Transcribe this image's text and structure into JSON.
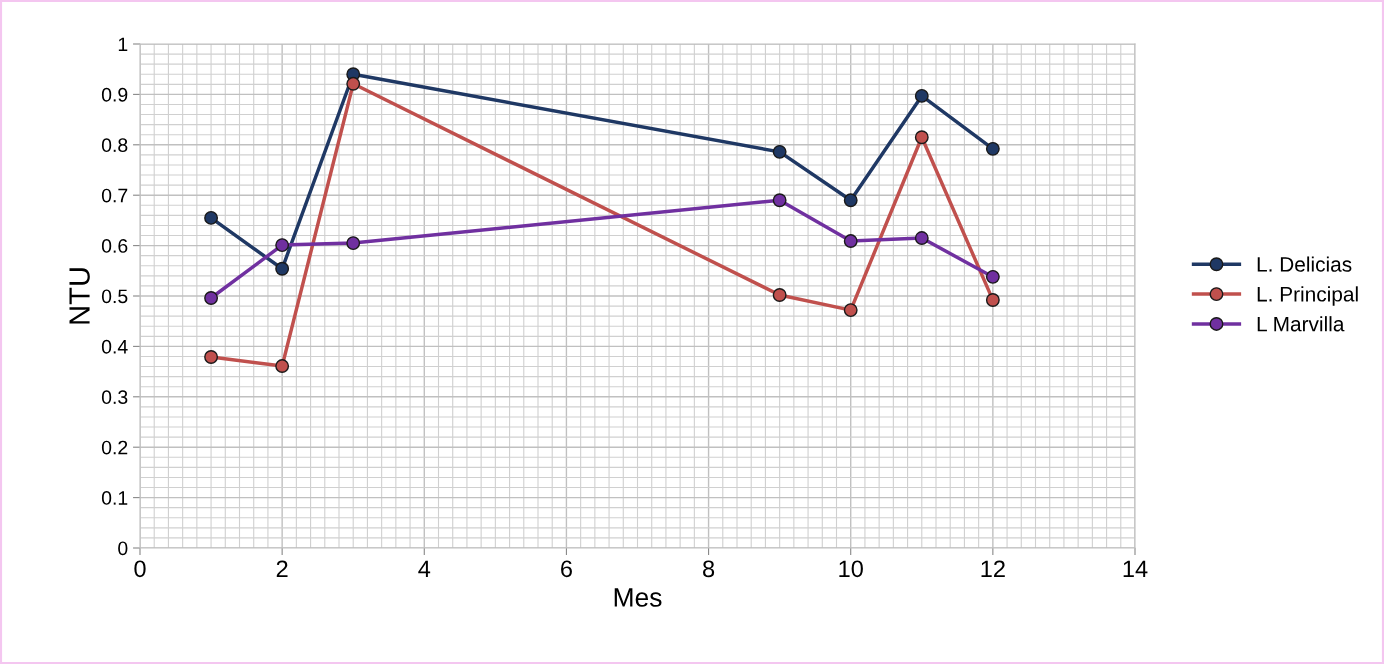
{
  "chart_data": {
    "type": "line",
    "xlabel": "Mes",
    "ylabel": "NTU",
    "x": [
      1,
      2,
      3,
      9,
      10,
      11,
      12
    ],
    "series": [
      {
        "name": "L. Delicias",
        "color": "#1f3864",
        "values": [
          0.655,
          0.554,
          0.94,
          0.786,
          0.69,
          0.897,
          0.792
        ]
      },
      {
        "name": "L. Principal",
        "color": "#c0504d",
        "values": [
          0.379,
          0.361,
          0.921,
          0.502,
          0.472,
          0.815,
          0.492
        ]
      },
      {
        "name": "L Marvilla",
        "color": "#7030a0",
        "values": [
          0.496,
          0.601,
          0.605,
          0.69,
          0.609,
          0.615,
          0.538
        ]
      }
    ],
    "xlim": [
      0,
      14
    ],
    "xticks": [
      0,
      2,
      4,
      6,
      8,
      10,
      12,
      14
    ],
    "ylim": [
      0,
      1
    ],
    "yticks": [
      0,
      0.1,
      0.2,
      0.3,
      0.4,
      0.5,
      0.6,
      0.7,
      0.8,
      0.9,
      1
    ],
    "grid": true,
    "legend": "right",
    "marker": "circle",
    "line_style": "solid"
  }
}
